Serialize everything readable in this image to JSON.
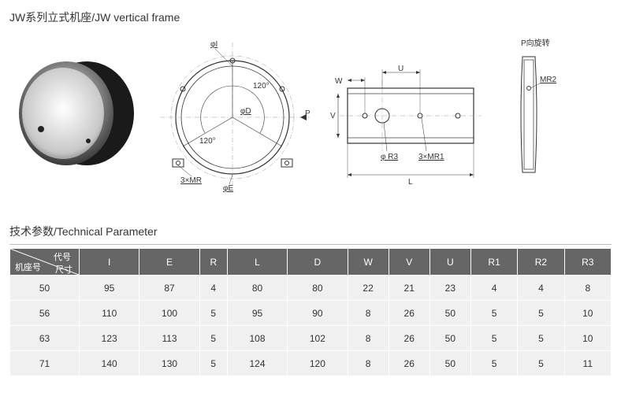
{
  "title": "JW系列立式机座/JW vertical frame",
  "section_title": "技术参数/Technical Parameter",
  "diagrams": {
    "circle": {
      "labels": {
        "phi_i": "φI",
        "phi_d": "φD",
        "phi_e": "φE",
        "mr": "3×MR",
        "angle": "120°",
        "p": "P"
      }
    },
    "rect": {
      "labels": {
        "u": "U",
        "w": "W",
        "v": "V",
        "phi_r3": "φ R3",
        "mr1": "3×MR1",
        "l": "L"
      }
    },
    "side": {
      "labels": {
        "rotate": "P向旋转",
        "mr2": "MR2"
      }
    }
  },
  "table": {
    "corner": {
      "top": "代号",
      "mid": "尺寸",
      "bot": "机座号"
    },
    "columns": [
      "I",
      "E",
      "R",
      "L",
      "D",
      "W",
      "V",
      "U",
      "R1",
      "R2",
      "R3"
    ],
    "rows": [
      [
        "50",
        "95",
        "87",
        "4",
        "80",
        "80",
        "22",
        "21",
        "23",
        "4",
        "4",
        "8"
      ],
      [
        "56",
        "110",
        "100",
        "5",
        "95",
        "90",
        "8",
        "26",
        "50",
        "5",
        "5",
        "10"
      ],
      [
        "63",
        "123",
        "113",
        "5",
        "108",
        "102",
        "8",
        "26",
        "50",
        "5",
        "5",
        "10"
      ],
      [
        "71",
        "140",
        "130",
        "5",
        "124",
        "120",
        "8",
        "26",
        "50",
        "5",
        "5",
        "11"
      ]
    ]
  }
}
